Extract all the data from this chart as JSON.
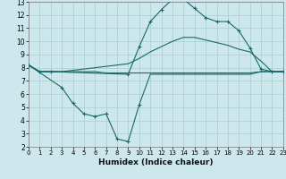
{
  "bg_color": "#cce8ec",
  "grid_color": "#aacccc",
  "line_color": "#1a6868",
  "xlabel": "Humidex (Indice chaleur)",
  "xlim": [
    0,
    23
  ],
  "ylim": [
    2,
    13
  ],
  "xticks": [
    0,
    1,
    2,
    3,
    4,
    5,
    6,
    7,
    8,
    9,
    10,
    11,
    12,
    13,
    14,
    15,
    16,
    17,
    18,
    19,
    20,
    21,
    22,
    23
  ],
  "yticks": [
    2,
    3,
    4,
    5,
    6,
    7,
    8,
    9,
    10,
    11,
    12,
    13
  ],
  "curve1_x": [
    0,
    1,
    2,
    9,
    10,
    11,
    12,
    13,
    14,
    15,
    16,
    17,
    18,
    19,
    20,
    21,
    22,
    23
  ],
  "curve1_y": [
    8.2,
    7.7,
    7.7,
    7.5,
    9.6,
    11.5,
    12.4,
    13.2,
    13.2,
    12.5,
    11.8,
    11.5,
    11.5,
    10.8,
    9.5,
    7.9,
    7.7,
    7.7
  ],
  "curve2_x": [
    0,
    1,
    2,
    3,
    4,
    5,
    6,
    7,
    8,
    9,
    10,
    11,
    12,
    13,
    14,
    15,
    16,
    17,
    18,
    19,
    20,
    21,
    22,
    23
  ],
  "curve2_y": [
    8.2,
    7.7,
    7.7,
    7.7,
    7.8,
    7.9,
    8.0,
    8.1,
    8.2,
    8.3,
    8.7,
    9.2,
    9.6,
    10.0,
    10.3,
    10.3,
    10.1,
    9.9,
    9.7,
    9.4,
    9.2,
    8.5,
    7.7,
    7.7
  ],
  "curve3_x": [
    0,
    1,
    2,
    3,
    4,
    5,
    6,
    7,
    8,
    9,
    10,
    11,
    12,
    13,
    14,
    15,
    16,
    17,
    18,
    19,
    20,
    21,
    22,
    23
  ],
  "curve3_y": [
    8.2,
    7.7,
    7.7,
    7.7,
    7.7,
    7.7,
    7.7,
    7.6,
    7.6,
    7.6,
    7.6,
    7.6,
    7.6,
    7.6,
    7.6,
    7.6,
    7.6,
    7.6,
    7.6,
    7.6,
    7.6,
    7.7,
    7.7,
    7.7
  ],
  "curve4_x": [
    0,
    3,
    4,
    5,
    6,
    7,
    8,
    9,
    10,
    11,
    12,
    13,
    14,
    15,
    16,
    17,
    18,
    19,
    20,
    21,
    22,
    23
  ],
  "curve4_y": [
    8.2,
    6.5,
    5.3,
    4.5,
    4.3,
    4.5,
    2.6,
    2.4,
    5.2,
    7.5,
    7.5,
    7.5,
    7.5,
    7.5,
    7.5,
    7.5,
    7.5,
    7.5,
    7.5,
    7.7,
    7.7,
    7.7
  ],
  "curve4_marker_x": [
    0,
    3,
    4,
    5,
    6,
    7,
    8,
    9,
    10
  ],
  "curve4_marker_y": [
    8.2,
    6.5,
    5.3,
    4.5,
    4.3,
    4.5,
    2.6,
    2.4,
    5.2
  ]
}
